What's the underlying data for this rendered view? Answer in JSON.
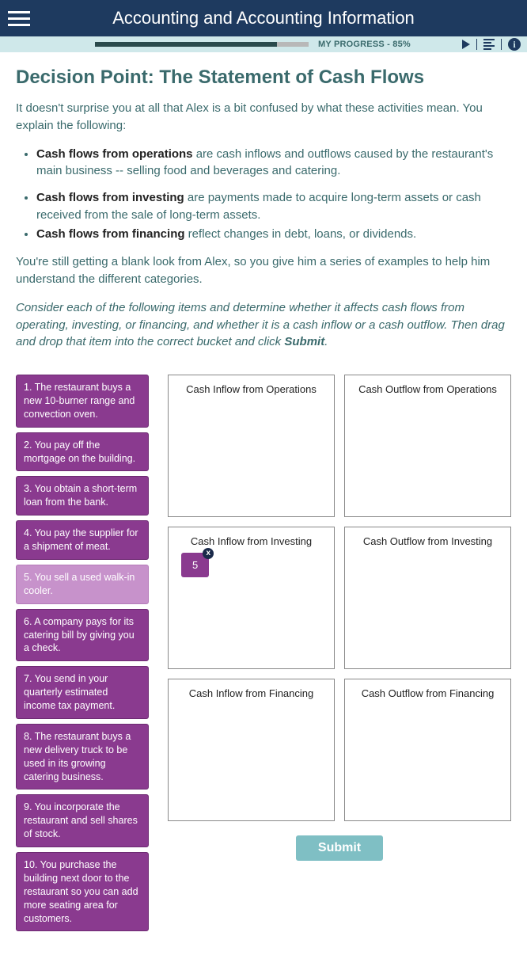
{
  "colors": {
    "header_bg": "#1e3a5f",
    "progress_strip_bg": "#cfe8ea",
    "progress_fill": "#2a4a4c",
    "progress_track": "#b8b8b8",
    "body_text": "#3a6a6c",
    "item_bg": "#8a3a8f",
    "item_dragged_bg": "#c792cb",
    "submit_bg": "#7fbfc4",
    "chip_x_bg": "#1a2a4a"
  },
  "header": {
    "title": "Accounting and Accounting Information"
  },
  "progress": {
    "label": "MY PROGRESS - 85%",
    "percent": 85
  },
  "page": {
    "title": "Decision Point: The Statement of Cash Flows",
    "intro": "It doesn't surprise you at all that Alex is a bit confused by what these activities mean. You explain the following:",
    "defs": [
      {
        "term": "Cash flows from operations",
        "text": " are cash inflows and outflows caused by the restaurant's main business -- selling food and beverages and catering."
      },
      {
        "term": "Cash flows from investing",
        "text": " are payments made to acquire long-term assets or cash received from the sale of long-term assets."
      },
      {
        "term": "Cash flows from financing",
        "text": " reflect changes in debt, loans, or dividends."
      }
    ],
    "para2": "You're still getting a blank look from Alex, so you give him a series of examples to help him understand the different categories.",
    "instruction_pre": "Consider each of the following items and determine whether it affects cash flows from operating, investing, or financing, and whether it is a cash inflow or a cash outflow. Then drag and drop that item into the correct bucket and click ",
    "instruction_submit": "Submit",
    "instruction_post": "."
  },
  "items": [
    "1. The restaurant buys a new 10-burner range and convection oven.",
    "2. You pay off the mortgage on the building.",
    "3. You obtain a short-term loan from the bank.",
    "4. You pay the supplier for a shipment of meat.",
    "5. You sell a used walk-in cooler.",
    "6. A company pays for its catering bill by giving you a check.",
    "7. You send in your quarterly estimated income tax payment.",
    "8. The restaurant buys a new delivery truck to be used in its growing catering business.",
    "9. You incorporate the restaurant and sell shares of stock.",
    "10. You purchase the building next door to the restaurant so you can add more seating area for customers."
  ],
  "dragged_index": 4,
  "buckets": [
    {
      "label": "Cash Inflow from Operations",
      "placed": []
    },
    {
      "label": "Cash Outflow from Operations",
      "placed": []
    },
    {
      "label": "Cash Inflow from Investing",
      "placed": [
        {
          "short": "5"
        }
      ]
    },
    {
      "label": "Cash Outflow from Investing",
      "placed": []
    },
    {
      "label": "Cash Inflow from Financing",
      "placed": []
    },
    {
      "label": "Cash Outflow from Financing",
      "placed": []
    }
  ],
  "submit_label": "Submit",
  "info_glyph": "i"
}
